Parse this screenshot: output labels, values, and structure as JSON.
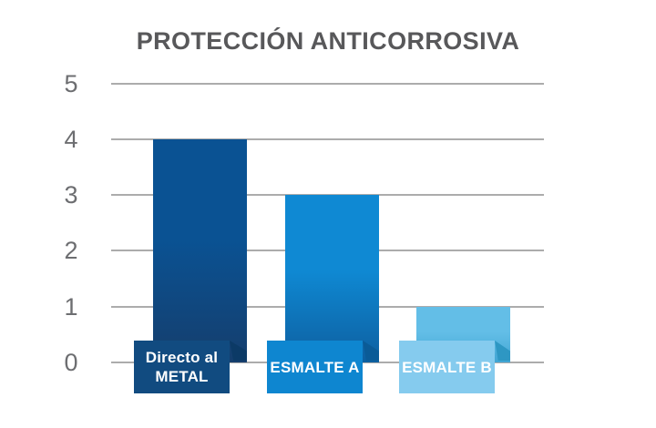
{
  "chart_data": {
    "type": "bar",
    "title": "PROTECCIÓN ANTICORROSIVA",
    "title_color": "#58585A",
    "categories": [
      "Directo al METAL",
      "ESMALTE A",
      "ESMALTE B"
    ],
    "values": [
      4,
      3,
      1
    ],
    "ylim": [
      0,
      5
    ],
    "yticks": [
      5,
      4,
      3,
      2,
      1,
      0
    ],
    "grid": true,
    "gridline_color": "#ACACAC",
    "axis_tick_color": "#6D6E71",
    "legend": false,
    "bars": [
      {
        "category": "Directo al METAL",
        "label_lines": [
          "Directo al",
          "METAL"
        ],
        "value": 4,
        "bar_color_top": "#0A5293",
        "bar_color_bottom": "#153E6D",
        "label_bg": "#114B80",
        "fold_color": "#0C3A66",
        "label_text_color": "#FFFFFF"
      },
      {
        "category": "ESMALTE A",
        "label_lines": [
          "ESMALTE A"
        ],
        "value": 3,
        "bar_color_top": "#0F89D3",
        "bar_color_bottom": "#0D5FA0",
        "label_bg": "#0E86D0",
        "fold_color": "#0A5B97",
        "label_text_color": "#FFFFFF"
      },
      {
        "category": "ESMALTE B",
        "label_lines": [
          "ESMALTE B"
        ],
        "value": 1,
        "bar_color_top": "#63BEE7",
        "bar_color_bottom": "#41A5D3",
        "label_bg": "#85CBEE",
        "fold_color": "#2E97C3",
        "label_text_color": "#FFFFFF"
      }
    ]
  }
}
